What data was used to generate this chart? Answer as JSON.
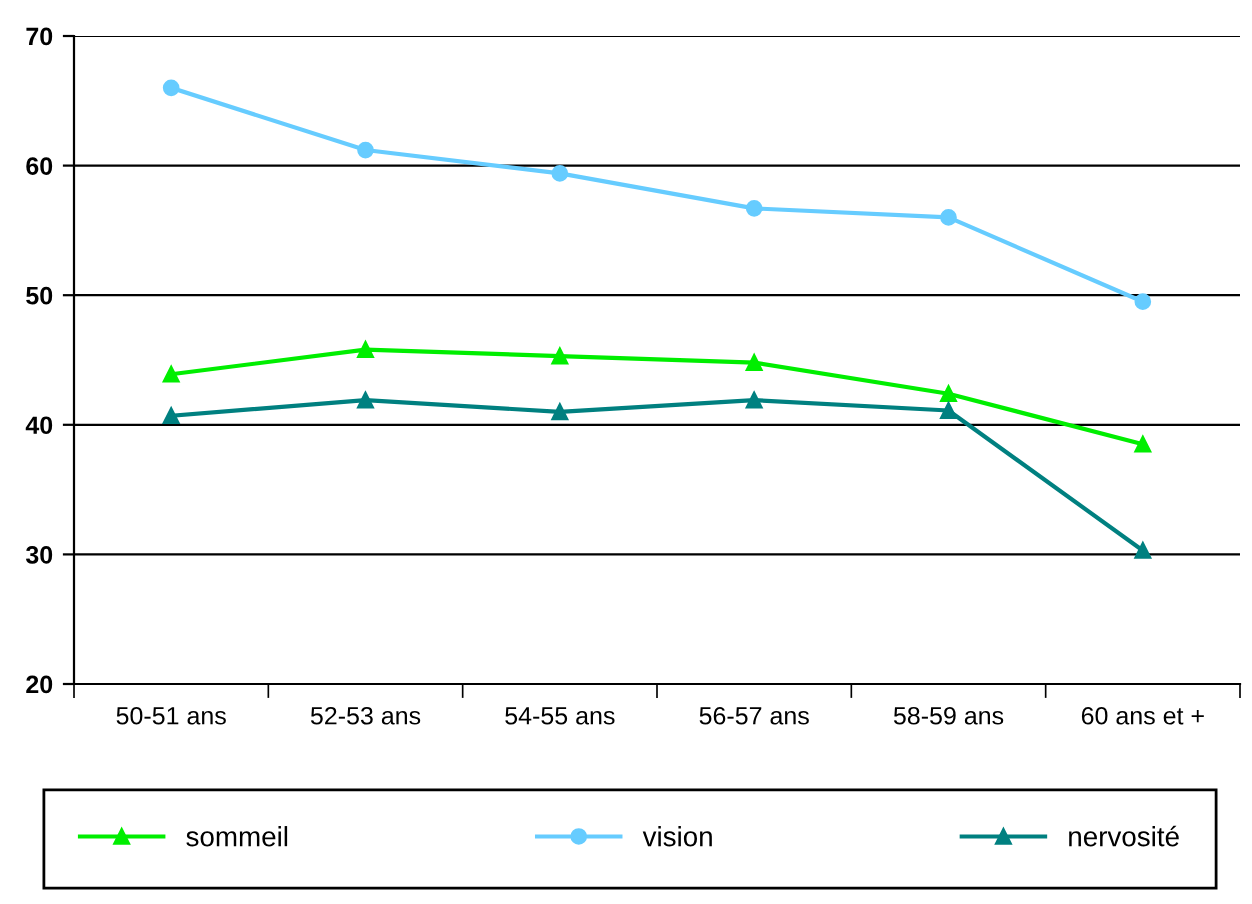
{
  "chart_data": {
    "type": "line",
    "categories": [
      "50-51 ans",
      "52-53 ans",
      "54-55 ans",
      "56-57 ans",
      "58-59 ans",
      "60 ans et +"
    ],
    "series": [
      {
        "name": "sommeil",
        "color": "#00ee00",
        "marker": "triangle",
        "values": [
          43.9,
          45.8,
          45.3,
          44.8,
          42.4,
          38.5
        ]
      },
      {
        "name": "vision",
        "color": "#66ccff",
        "marker": "circle",
        "values": [
          66.0,
          61.2,
          59.4,
          56.7,
          56.0,
          49.5
        ]
      },
      {
        "name": "nervosité",
        "color": "#008080",
        "marker": "triangle",
        "values": [
          40.7,
          41.9,
          41.0,
          41.9,
          41.1,
          30.3
        ]
      }
    ],
    "ylim": [
      20,
      70
    ],
    "yticks": [
      20,
      30,
      40,
      50,
      60,
      70
    ],
    "grid": "y",
    "legend": "bottom"
  }
}
